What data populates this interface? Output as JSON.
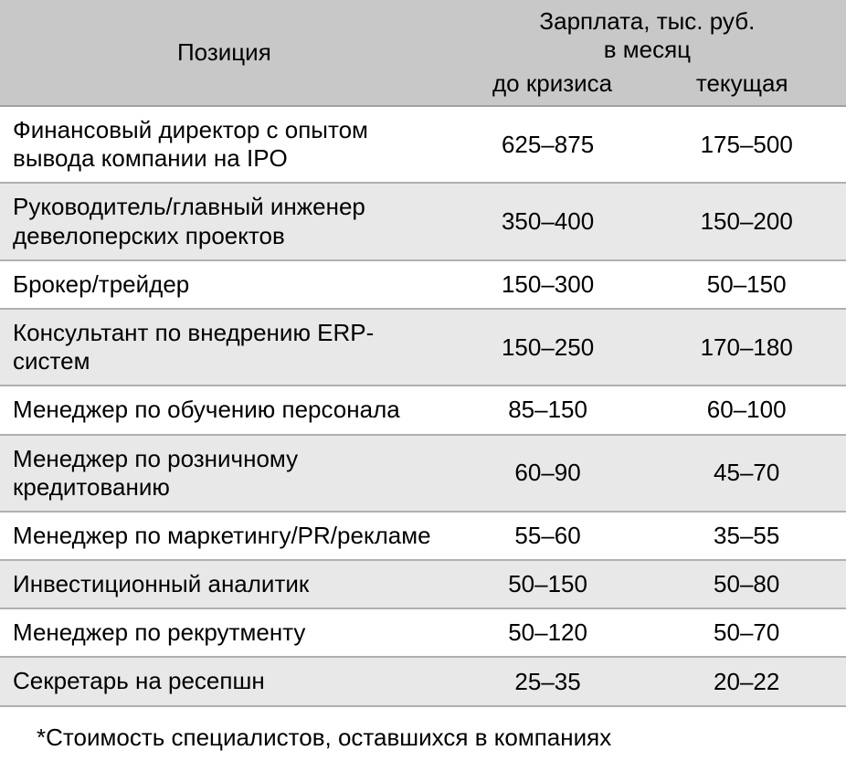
{
  "header": {
    "position": "Позиция",
    "salary_title": "Зарплата, тыс. руб.",
    "salary_subtitle": "в месяц",
    "before_crisis": "до кризиса",
    "current": "текущая"
  },
  "rows": [
    {
      "position": "Финансовый директор с опытом вывода компании на IPO",
      "before": "625–875",
      "current": "175–500"
    },
    {
      "position": "Руководитель/главный инженер девелоперских проектов",
      "before": "350–400",
      "current": "150–200"
    },
    {
      "position": "Брокер/трейдер",
      "before": "150–300",
      "current": "50–150"
    },
    {
      "position": "Консультант по внедрению ERP-систем",
      "before": "150–250",
      "current": "170–180"
    },
    {
      "position": "Менеджер по обучению персонала",
      "before": "85–150",
      "current": "60–100"
    },
    {
      "position": "Менеджер по розничному кредитованию",
      "before": "60–90",
      "current": "45–70"
    },
    {
      "position": "Менеджер по маркетингу/PR/рекламе",
      "before": "55–60",
      "current": "35–55"
    },
    {
      "position": "Инвестиционный аналитик",
      "before": "50–150",
      "current": "50–80"
    },
    {
      "position": "Менеджер по рекрутменту",
      "before": "50–120",
      "current": "50–70"
    },
    {
      "position": "Секретарь на ресепшн",
      "before": "25–35",
      "current": "20–22"
    }
  ],
  "footnote": "*Стоимость специалистов, оставшихся в компаниях",
  "style": {
    "type": "table",
    "columns": [
      "Позиция",
      "до кризиса",
      "текущая"
    ],
    "header_bg": "#c8c8c8",
    "row_alt_bg": "#e8e8e8",
    "row_bg": "#ffffff",
    "border_color": "#b0b0b0",
    "text_color": "#000000",
    "font_size_pt": 20,
    "col_widths_pct": [
      53,
      23.5,
      23.5
    ]
  }
}
